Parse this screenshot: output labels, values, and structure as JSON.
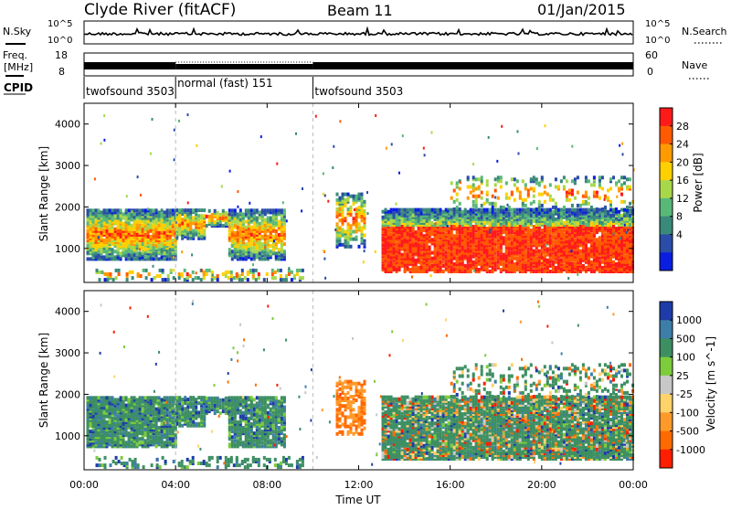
{
  "header": {
    "station": "Clyde River (fitACF)",
    "beam": "Beam 11",
    "date": "01/Jan/2015"
  },
  "noise_panel": {
    "left_label": "N.Sky",
    "left_ticks": [
      "10^5",
      "10^0"
    ],
    "right_label": "N.Search",
    "right_ticks": [
      "10^5",
      "10^0"
    ]
  },
  "freq_panel": {
    "left_label": "Freq.",
    "left_unit": "[MHz]",
    "left_ticks": [
      "18",
      "8"
    ],
    "right_label": "Nave",
    "right_ticks": [
      "60",
      "0"
    ]
  },
  "cpid_panel": {
    "label": "CPID",
    "segments": [
      {
        "name": "twofsound 3503",
        "start_hour": 0.0,
        "end_hour": 4.0
      },
      {
        "name": "normal (fast) 151",
        "start_hour": 4.0,
        "end_hour": 10.0
      },
      {
        "name": "twofsound 3503",
        "start_hour": 10.0,
        "end_hour": 24.0
      }
    ]
  },
  "x_axis": {
    "label": "Time UT",
    "ticks": [
      "00:00",
      "04:00",
      "08:00",
      "12:00",
      "16:00",
      "20:00",
      "00:00"
    ],
    "range_hours": [
      0,
      24
    ]
  },
  "chart_data": [
    {
      "type": "heatmap",
      "name": "power",
      "ylabel": "Slant Range [km]",
      "ylim": [
        180,
        4500
      ],
      "yticks": [
        1000,
        2000,
        3000,
        4000
      ],
      "colorbar": {
        "label": "Power [dB]",
        "ticks": [
          "28",
          "24",
          "20",
          "16",
          "12",
          "8",
          "4"
        ],
        "colors": [
          "#ff1a1a",
          "#ff5a00",
          "#ff9a00",
          "#ffd000",
          "#a8d84a",
          "#58b878",
          "#3a8a7a",
          "#2a4da8",
          "#0a1ee0"
        ]
      }
    },
    {
      "type": "heatmap",
      "name": "velocity",
      "ylabel": "Slant Range [km]",
      "ylim": [
        180,
        4500
      ],
      "yticks": [
        1000,
        2000,
        3000,
        4000
      ],
      "colorbar": {
        "label": "Velocity [m s^-1]",
        "ticks": [
          "1000",
          "500",
          "100",
          "25",
          "-25",
          "-100",
          "-500",
          "-1000"
        ],
        "colors": [
          "#1e3ca8",
          "#3c7ea8",
          "#3d8f62",
          "#7ccc3c",
          "#c8c8c8",
          "#ffd26a",
          "#ff9a2a",
          "#ff6a00",
          "#ff1e00"
        ]
      }
    }
  ]
}
